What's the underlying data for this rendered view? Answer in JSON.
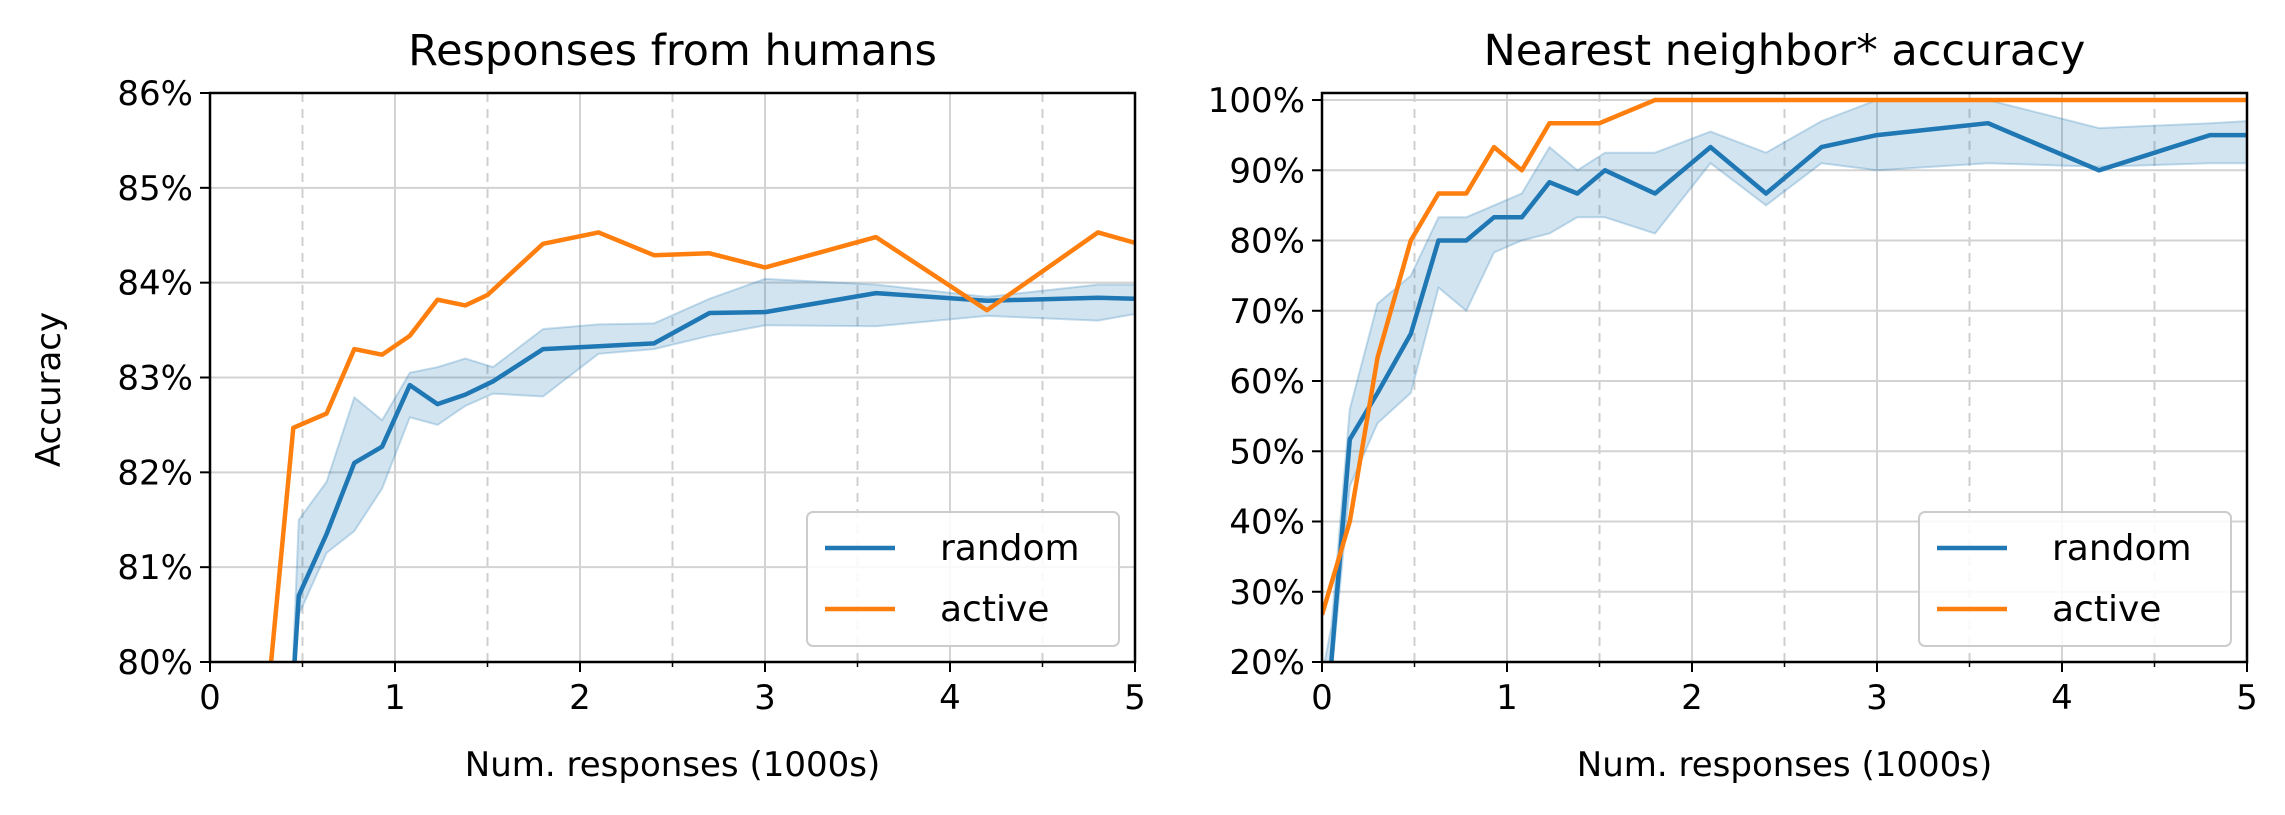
{
  "chart_data": [
    {
      "type": "line",
      "title": "Responses from humans",
      "xlabel": "Num. responses (1000s)",
      "ylabel": "Accuracy",
      "xlim": [
        0,
        5
      ],
      "ylim": [
        80,
        86
      ],
      "xticks": [
        "0",
        "1",
        "2",
        "3",
        "4",
        "5"
      ],
      "yticks": [
        "80%",
        "81%",
        "82%",
        "83%",
        "84%",
        "85%",
        "86%"
      ],
      "grid": true,
      "legend_position": "lower-right",
      "series": [
        {
          "name": "random",
          "color": "#1f77b4",
          "x": [
            0.45,
            0.48,
            0.63,
            0.78,
            0.93,
            1.08,
            1.23,
            1.38,
            1.53,
            1.8,
            2.1,
            2.4,
            2.7,
            3.0,
            3.6,
            4.2,
            4.8,
            5.0
          ],
          "y": [
            79.8,
            80.7,
            81.35,
            82.1,
            82.27,
            82.92,
            82.72,
            82.82,
            82.96,
            83.3,
            83.33,
            83.36,
            83.68,
            83.69,
            83.89,
            83.81,
            83.84,
            83.83
          ],
          "band_lower": [
            79.6,
            80.5,
            81.15,
            81.38,
            81.83,
            82.58,
            82.5,
            82.7,
            82.83,
            82.8,
            83.25,
            83.3,
            83.44,
            83.55,
            83.54,
            83.65,
            83.6,
            83.67
          ],
          "band_upper": [
            80.1,
            81.5,
            81.9,
            82.79,
            82.55,
            83.05,
            83.11,
            83.2,
            83.11,
            83.51,
            83.56,
            83.57,
            83.83,
            84.04,
            83.98,
            83.85,
            83.98,
            83.98
          ]
        },
        {
          "name": "active",
          "color": "#ff7f0e",
          "x": [
            0.33,
            0.45,
            0.63,
            0.78,
            0.93,
            1.08,
            1.23,
            1.38,
            1.5,
            1.8,
            2.1,
            2.4,
            2.7,
            3.0,
            3.6,
            4.2,
            4.8,
            5.0
          ],
          "y": [
            80.0,
            82.47,
            82.62,
            83.3,
            83.24,
            83.44,
            83.82,
            83.76,
            83.87,
            84.41,
            84.53,
            84.29,
            84.31,
            84.16,
            84.48,
            83.71,
            84.53,
            84.42
          ]
        }
      ]
    },
    {
      "type": "line",
      "title": "Nearest neighbor* accuracy",
      "xlabel": "Num. responses (1000s)",
      "ylabel": "",
      "xlim": [
        0,
        5
      ],
      "ylim": [
        20,
        101
      ],
      "xticks": [
        "0",
        "1",
        "2",
        "3",
        "4",
        "5"
      ],
      "yticks": [
        "20%",
        "30%",
        "40%",
        "50%",
        "60%",
        "70%",
        "80%",
        "90%",
        "100%"
      ],
      "grid": true,
      "legend_position": "lower-right",
      "series": [
        {
          "name": "random",
          "color": "#1f77b4",
          "x": [
            0.0,
            0.05,
            0.15,
            0.3,
            0.48,
            0.63,
            0.78,
            0.93,
            1.08,
            1.23,
            1.38,
            1.53,
            1.8,
            2.1,
            2.4,
            2.7,
            3.0,
            3.6,
            4.2,
            4.8,
            5.0
          ],
          "y": [
            16,
            20,
            51.7,
            58.3,
            66.7,
            80,
            80,
            83.3,
            83.3,
            88.3,
            86.7,
            90,
            86.7,
            93.3,
            86.7,
            93.3,
            95,
            96.7,
            90,
            95,
            95
          ],
          "band_lower": [
            14,
            18,
            45,
            54,
            58.3,
            73.3,
            70,
            78.3,
            80,
            81,
            83.3,
            83.3,
            81,
            91,
            85,
            91,
            90,
            91,
            90.5,
            91,
            91
          ],
          "band_upper": [
            18,
            25,
            56,
            71,
            75,
            83.3,
            83.3,
            85,
            86.7,
            93.3,
            90,
            92.5,
            92.5,
            95.5,
            92.5,
            97,
            100,
            100,
            96,
            96.7,
            97
          ]
        },
        {
          "name": "active",
          "color": "#ff7f0e",
          "x": [
            0.0,
            0.15,
            0.3,
            0.48,
            0.63,
            0.78,
            0.93,
            1.08,
            1.23,
            1.5,
            1.8,
            2.1,
            2.4,
            3.0,
            3.6,
            4.2,
            5.0
          ],
          "y": [
            26.7,
            40,
            63.3,
            80,
            86.7,
            86.7,
            93.3,
            90,
            96.7,
            96.7,
            100,
            100,
            100,
            100,
            100,
            100,
            100
          ]
        }
      ]
    }
  ]
}
